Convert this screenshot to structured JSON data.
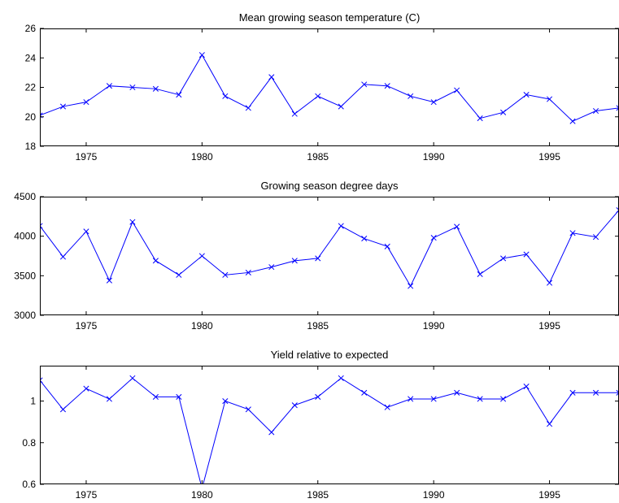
{
  "chart_data": [
    {
      "type": "line",
      "title": "Mean growing season temperature (C)",
      "xlim": [
        1973,
        1998
      ],
      "ylim": [
        18,
        26
      ],
      "xticks": [
        1975,
        1980,
        1985,
        1990,
        1995
      ],
      "yticks": [
        18,
        20,
        22,
        24,
        26
      ],
      "marker": "x",
      "color": "#0000ff",
      "x": [
        1973,
        1974,
        1975,
        1976,
        1977,
        1978,
        1979,
        1980,
        1981,
        1982,
        1983,
        1984,
        1985,
        1986,
        1987,
        1988,
        1989,
        1990,
        1991,
        1992,
        1993,
        1994,
        1995,
        1996,
        1997,
        1998
      ],
      "values": [
        20.1,
        20.7,
        21.0,
        22.1,
        22.0,
        21.9,
        21.5,
        24.2,
        21.4,
        20.6,
        22.7,
        20.2,
        21.4,
        20.7,
        22.2,
        22.1,
        21.4,
        21.0,
        21.8,
        19.9,
        20.3,
        21.5,
        21.2,
        19.7,
        20.4,
        20.6
      ]
    },
    {
      "type": "line",
      "title": "Growing season degree days",
      "xlim": [
        1973,
        1998
      ],
      "ylim": [
        3000,
        4500
      ],
      "xticks": [
        1975,
        1980,
        1985,
        1990,
        1995
      ],
      "yticks": [
        3000,
        3500,
        4000,
        4500
      ],
      "marker": "x",
      "color": "#0000ff",
      "x": [
        1973,
        1974,
        1975,
        1976,
        1977,
        1978,
        1979,
        1980,
        1981,
        1982,
        1983,
        1984,
        1985,
        1986,
        1987,
        1988,
        1989,
        1990,
        1991,
        1992,
        1993,
        1994,
        1995,
        1996,
        1997,
        1998
      ],
      "values": [
        4130,
        3740,
        4060,
        3440,
        4180,
        3690,
        3510,
        3750,
        3510,
        3540,
        3610,
        3690,
        3720,
        4130,
        3970,
        3870,
        3370,
        3980,
        4120,
        3520,
        3720,
        3770,
        3410,
        4040,
        3990,
        4330
      ]
    },
    {
      "type": "line",
      "title": "Yield relative to expected",
      "xlim": [
        1973,
        1998
      ],
      "ylim": [
        0.6,
        1.17
      ],
      "xticks": [
        1975,
        1980,
        1985,
        1990,
        1995
      ],
      "yticks": [
        0.6,
        0.8,
        1
      ],
      "marker": "x",
      "color": "#0000ff",
      "x": [
        1973,
        1974,
        1975,
        1976,
        1977,
        1978,
        1979,
        1980,
        1981,
        1982,
        1983,
        1984,
        1985,
        1986,
        1987,
        1988,
        1989,
        1990,
        1991,
        1992,
        1993,
        1994,
        1995,
        1996,
        1997,
        1998
      ],
      "values": [
        1.1,
        0.96,
        1.06,
        1.01,
        1.11,
        1.02,
        1.02,
        0.58,
        1.0,
        0.96,
        0.85,
        0.98,
        1.02,
        1.11,
        1.04,
        0.97,
        1.01,
        1.01,
        1.04,
        1.01,
        1.01,
        1.07,
        0.89,
        1.04,
        1.04,
        1.04
      ]
    }
  ]
}
